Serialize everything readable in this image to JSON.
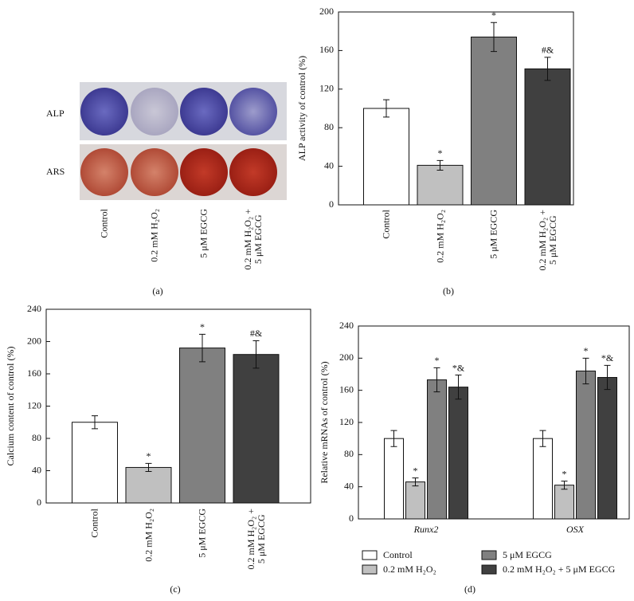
{
  "figure_a": {
    "row_labels": [
      "ALP",
      "ARS"
    ],
    "categories": [
      "Control",
      "0.2 mM H₂O₂",
      "5 μM EGCG",
      "0.2 mM H₂O₂ +\n5 μM EGCG"
    ],
    "panel_label": "(a)"
  },
  "chart_data": [
    {
      "type": "bar",
      "panel_label": "(b)",
      "y_label": "ALP activity of control (%)",
      "categories": [
        "Control",
        "0.2 mM H₂O₂",
        "5 μM EGCG",
        "0.2 mM H₂O₂ +\n5 μM EGCG"
      ],
      "values": [
        100,
        41,
        174,
        141
      ],
      "errors": [
        9,
        5,
        15,
        12
      ],
      "annotations": [
        null,
        "*",
        "*",
        "#&"
      ],
      "colors": [
        "#ffffff",
        "#c0c0c0",
        "#808080",
        "#404040"
      ],
      "ylim": [
        0,
        200
      ],
      "yticks": [
        0,
        40,
        80,
        120,
        160,
        200
      ]
    },
    {
      "type": "bar",
      "panel_label": "(c)",
      "y_label": "Calcium content of control (%)",
      "categories": [
        "Control",
        "0.2 mM H₂O₂",
        "5 μM EGCG",
        "0.2 mM H₂O₂ +\n5 μM EGCG"
      ],
      "values": [
        100,
        44,
        192,
        184
      ],
      "errors": [
        8,
        5,
        17,
        17
      ],
      "annotations": [
        null,
        "*",
        "*",
        "#&"
      ],
      "colors": [
        "#ffffff",
        "#c0c0c0",
        "#808080",
        "#404040"
      ],
      "ylim": [
        0,
        240
      ],
      "yticks": [
        0,
        40,
        80,
        120,
        160,
        200,
        240
      ]
    },
    {
      "type": "grouped_bar",
      "panel_label": "(d)",
      "y_label": "Relative mRNAs of control (%)",
      "categories": [
        "Runx2",
        "OSX"
      ],
      "series": [
        {
          "name": "Control",
          "color": "#ffffff",
          "values": [
            100,
            100
          ],
          "errors": [
            10,
            10
          ],
          "annotations": [
            null,
            null
          ]
        },
        {
          "name": "0.2 mM H₂O₂",
          "color": "#c0c0c0",
          "values": [
            46,
            42
          ],
          "errors": [
            5,
            5
          ],
          "annotations": [
            "*",
            "*"
          ]
        },
        {
          "name": "5 μM EGCG",
          "color": "#808080",
          "values": [
            173,
            184
          ],
          "errors": [
            15,
            16
          ],
          "annotations": [
            "*",
            "*"
          ]
        },
        {
          "name": "0.2 mM H₂O₂ + 5 μM EGCG",
          "color": "#404040",
          "values": [
            164,
            176
          ],
          "errors": [
            15,
            15
          ],
          "annotations": [
            "*&",
            "*&"
          ]
        }
      ],
      "ylim": [
        0,
        240
      ],
      "yticks": [
        0,
        40,
        80,
        120,
        160,
        200,
        240
      ]
    }
  ]
}
